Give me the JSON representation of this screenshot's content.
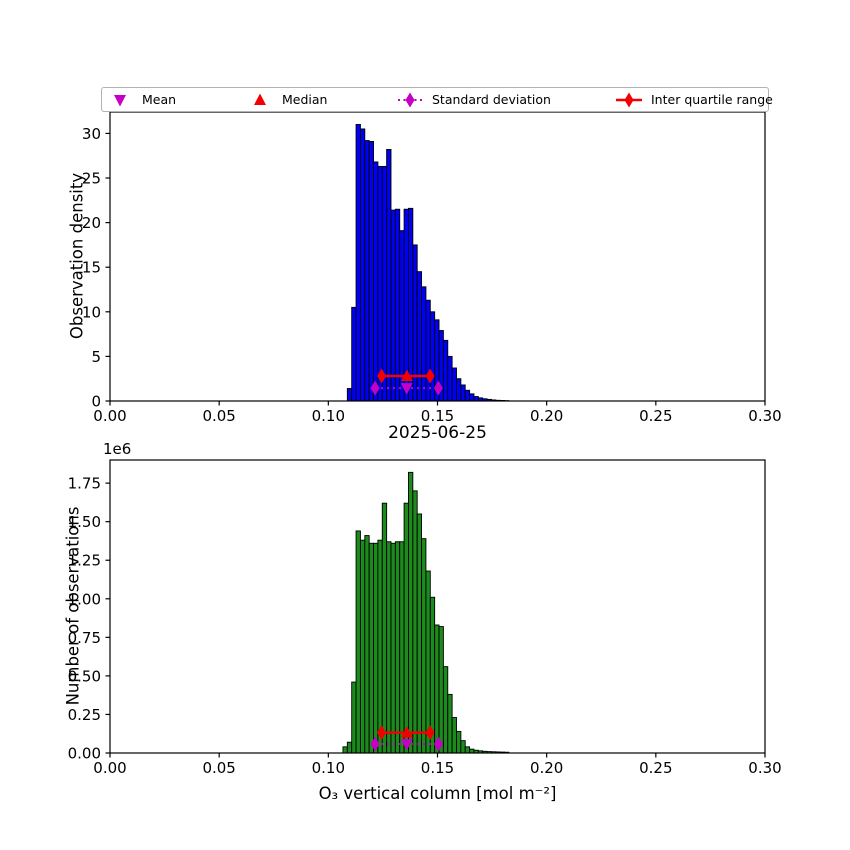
{
  "figure": {
    "title": "2025-06-25",
    "xlabel": "O₃ vertical column [mol m⁻²]"
  },
  "colors": {
    "hist_top": "#0000f2",
    "hist_bottom": "#1c8a1c",
    "edge": "#000000",
    "red": "#f40000",
    "magenta": "#c400c4"
  },
  "legend": {
    "entries": [
      {
        "label": "Mean",
        "marker": "triangle-down",
        "color": "#c400c4"
      },
      {
        "label": "Median",
        "marker": "triangle-up",
        "color": "#f40000"
      },
      {
        "label": "Standard deviation",
        "marker": "diamond-dotted",
        "color": "#c400c4"
      },
      {
        "label": "Inter quartile range",
        "marker": "diamond-line",
        "color": "#f40000"
      }
    ]
  },
  "stats": {
    "mean": 0.1359,
    "median": 0.136,
    "q1": 0.1244,
    "q3": 0.1466,
    "std_lo": 0.1214,
    "std_hi": 0.1504
  },
  "chart_data": [
    {
      "type": "bar",
      "title": "",
      "xlabel": "",
      "ylabel": "Observation density",
      "bin_start": 0.1087,
      "bin_width": 0.002,
      "values": [
        1.4,
        10.5,
        31.0,
        30.5,
        29.2,
        29.1,
        26.8,
        26.3,
        26.3,
        28.2,
        21.4,
        21.5,
        19.1,
        21.5,
        21.6,
        17.5,
        14.5,
        12.8,
        11.3,
        10.0,
        9.1,
        7.9,
        6.8,
        5.0,
        3.7,
        2.5,
        1.8,
        1.2,
        0.8,
        0.5,
        0.35,
        0.25,
        0.18,
        0.12,
        0.08,
        0.06,
        0.04
      ],
      "bar_color": "#0000f2",
      "xlim": [
        0.0,
        0.3
      ],
      "ylim": [
        0,
        32.4
      ],
      "xticks": {
        "labels": [
          "0.00",
          "0.05",
          "0.10",
          "0.15",
          "0.20",
          "0.25",
          "0.30"
        ],
        "values": [
          0.0,
          0.05,
          0.1,
          0.15,
          0.2,
          0.25,
          0.3
        ]
      },
      "yticks": {
        "labels": [
          "0",
          "5",
          "10",
          "15",
          "20",
          "25",
          "30"
        ],
        "values": [
          0,
          5,
          10,
          15,
          20,
          25,
          30
        ]
      },
      "marker_rows": {
        "iqr_y": 2.8,
        "std_y": 1.45
      },
      "grid": false,
      "legend_position": "top"
    },
    {
      "type": "bar",
      "title": "2025-06-25",
      "xlabel": "O₃ vertical column [mol m⁻²]",
      "ylabel": "Number of observations",
      "offset_label": "1e6",
      "bin_start": 0.1067,
      "bin_width": 0.002,
      "values": [
        40000,
        70000,
        460000,
        1440000,
        1380000,
        1410000,
        1360000,
        1360000,
        1380000,
        1620000,
        1370000,
        1360000,
        1370000,
        1370000,
        1620000,
        1820000,
        1700000,
        1550000,
        1390000,
        1180000,
        1010000,
        830000,
        820000,
        560000,
        380000,
        230000,
        140000,
        80000,
        40000,
        25000,
        18000,
        14000,
        11000,
        9000,
        8000,
        7000,
        6000,
        5000
      ],
      "bar_color": "#1c8a1c",
      "xlim": [
        0.0,
        0.3
      ],
      "ylim": [
        0,
        1900000
      ],
      "xticks": {
        "labels": [
          "0.00",
          "0.05",
          "0.10",
          "0.15",
          "0.20",
          "0.25",
          "0.30"
        ],
        "values": [
          0.0,
          0.05,
          0.1,
          0.15,
          0.2,
          0.25,
          0.3
        ]
      },
      "yticks": {
        "labels": [
          "0.00",
          "0.25",
          "0.50",
          "0.75",
          "1.00",
          "1.25",
          "1.50",
          "1.75"
        ],
        "values": [
          0,
          250000,
          500000,
          750000,
          1000000,
          1250000,
          1500000,
          1750000
        ]
      },
      "marker_rows": {
        "iqr_y": 132000,
        "std_y": 58000
      },
      "grid": false,
      "legend_position": "none"
    }
  ]
}
